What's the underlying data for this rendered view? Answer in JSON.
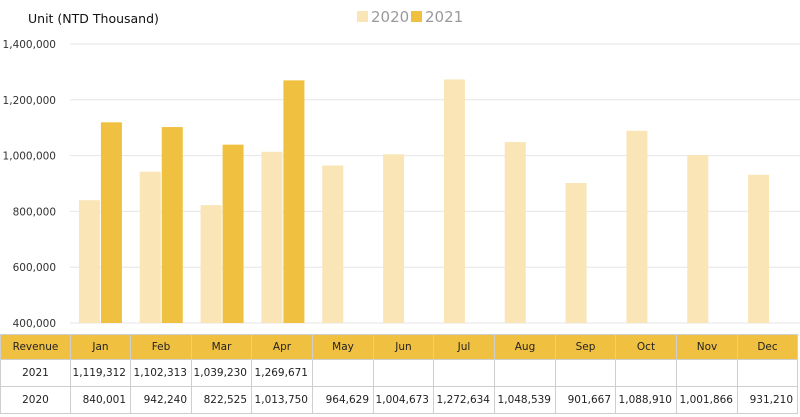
{
  "chart_data": {
    "type": "bar",
    "unit_label": "Unit (NTD  Thousand)",
    "categories": [
      "Jan",
      "Feb",
      "Mar",
      "Apr",
      "May",
      "Jun",
      "Jul",
      "Aug",
      "Sep",
      "Oct",
      "Nov",
      "Dec"
    ],
    "series": [
      {
        "name": "2020",
        "color": "#f9e5b5",
        "values": [
          840001,
          942240,
          822525,
          1013750,
          964629,
          1004673,
          1272634,
          1048539,
          901667,
          1088910,
          1001866,
          931210
        ]
      },
      {
        "name": "2021",
        "color": "#f0c040",
        "values": [
          1119312,
          1102313,
          1039230,
          1269671,
          null,
          null,
          null,
          null,
          null,
          null,
          null,
          null
        ]
      }
    ],
    "ylim": [
      400000,
      1400000
    ],
    "yticks": [
      "400,000",
      "600,000",
      "800,000",
      "1,000,000",
      "1,200,000",
      "1,400,000"
    ],
    "ytick_values": [
      400000,
      600000,
      800000,
      1000000,
      1200000,
      1400000
    ],
    "grid": true,
    "legend_position": "top"
  },
  "table": {
    "header_label": "Revenue",
    "months": [
      "Jan",
      "Feb",
      "Mar",
      "Apr",
      "May",
      "Jun",
      "Jul",
      "Aug",
      "Sep",
      "Oct",
      "Nov",
      "Dec"
    ],
    "rows": [
      {
        "label": "2021",
        "cells": [
          "1,119,312",
          "1,102,313",
          "1,039,230",
          "1,269,671",
          "",
          "",
          "",
          "",
          "",
          "",
          "",
          ""
        ]
      },
      {
        "label": "2020",
        "cells": [
          "840,001",
          "942,240",
          "822,525",
          "1,013,750",
          "964,629",
          "1,004,673",
          "1,272,634",
          "1,048,539",
          "901,667",
          "1,088,910",
          "1,001,866",
          "931,210"
        ]
      }
    ]
  }
}
